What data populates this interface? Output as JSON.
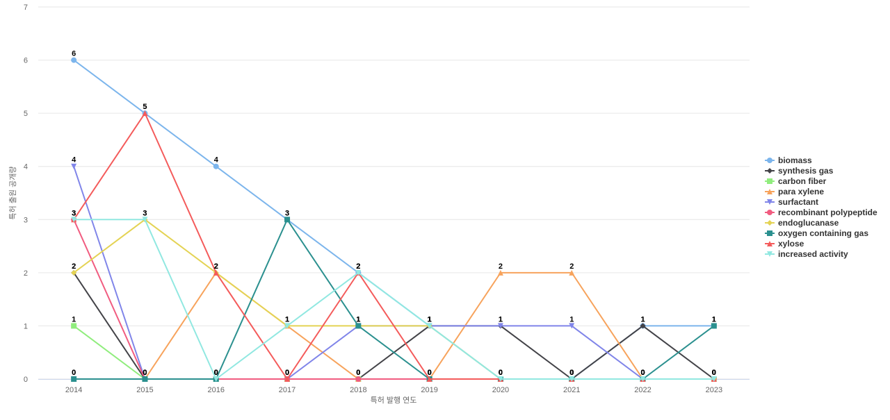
{
  "chart_data": {
    "type": "line",
    "x_label": "특허 발행 연도",
    "y_label": "특허 출원 공개량",
    "categories": [
      "2014",
      "2015",
      "2016",
      "2017",
      "2018",
      "2019",
      "2020",
      "2021",
      "2022",
      "2023"
    ],
    "ylim": [
      0,
      7
    ],
    "yticks": [
      0,
      1,
      2,
      3,
      4,
      5,
      6,
      7
    ],
    "grid": true,
    "legend": "right",
    "series": [
      {
        "name": "biomass",
        "color": "#7cb5ec",
        "marker": "circle",
        "values": [
          6,
          5,
          4,
          3,
          2,
          1,
          0,
          0,
          1,
          1
        ]
      },
      {
        "name": "synthesis gas",
        "color": "#434348",
        "marker": "diamond",
        "values": [
          2,
          0,
          0,
          0,
          0,
          1,
          1,
          0,
          1,
          0
        ]
      },
      {
        "name": "carbon fiber",
        "color": "#90ed7d",
        "marker": "square",
        "values": [
          1,
          0,
          0,
          0,
          0,
          0,
          0,
          0,
          0,
          0
        ]
      },
      {
        "name": "para xylene",
        "color": "#f7a35c",
        "marker": "triangle",
        "values": [
          0,
          0,
          2,
          1,
          0,
          0,
          2,
          2,
          0,
          0
        ]
      },
      {
        "name": "surfactant",
        "color": "#8085e9",
        "marker": "triangle-down",
        "values": [
          4,
          0,
          0,
          0,
          1,
          1,
          1,
          1,
          0,
          0
        ]
      },
      {
        "name": "recombinant polypeptide",
        "color": "#f15c80",
        "marker": "circle",
        "values": [
          3,
          0,
          0,
          0,
          0,
          0,
          0,
          0,
          0,
          0
        ]
      },
      {
        "name": "endoglucanase",
        "color": "#e4d354",
        "marker": "diamond",
        "values": [
          2,
          3,
          2,
          1,
          1,
          1,
          0,
          0,
          0,
          0
        ]
      },
      {
        "name": "oxygen containing gas",
        "color": "#2b908f",
        "marker": "square",
        "values": [
          0,
          0,
          0,
          3,
          1,
          0,
          0,
          0,
          0,
          1
        ]
      },
      {
        "name": "xylose",
        "color": "#f45b5b",
        "marker": "triangle",
        "values": [
          3,
          5,
          2,
          0,
          2,
          0,
          0,
          0,
          0,
          0
        ]
      },
      {
        "name": "increased activity",
        "color": "#91e8e1",
        "marker": "triangle-down",
        "values": [
          3,
          3,
          0,
          1,
          2,
          1,
          0,
          0,
          0,
          0
        ]
      }
    ]
  }
}
